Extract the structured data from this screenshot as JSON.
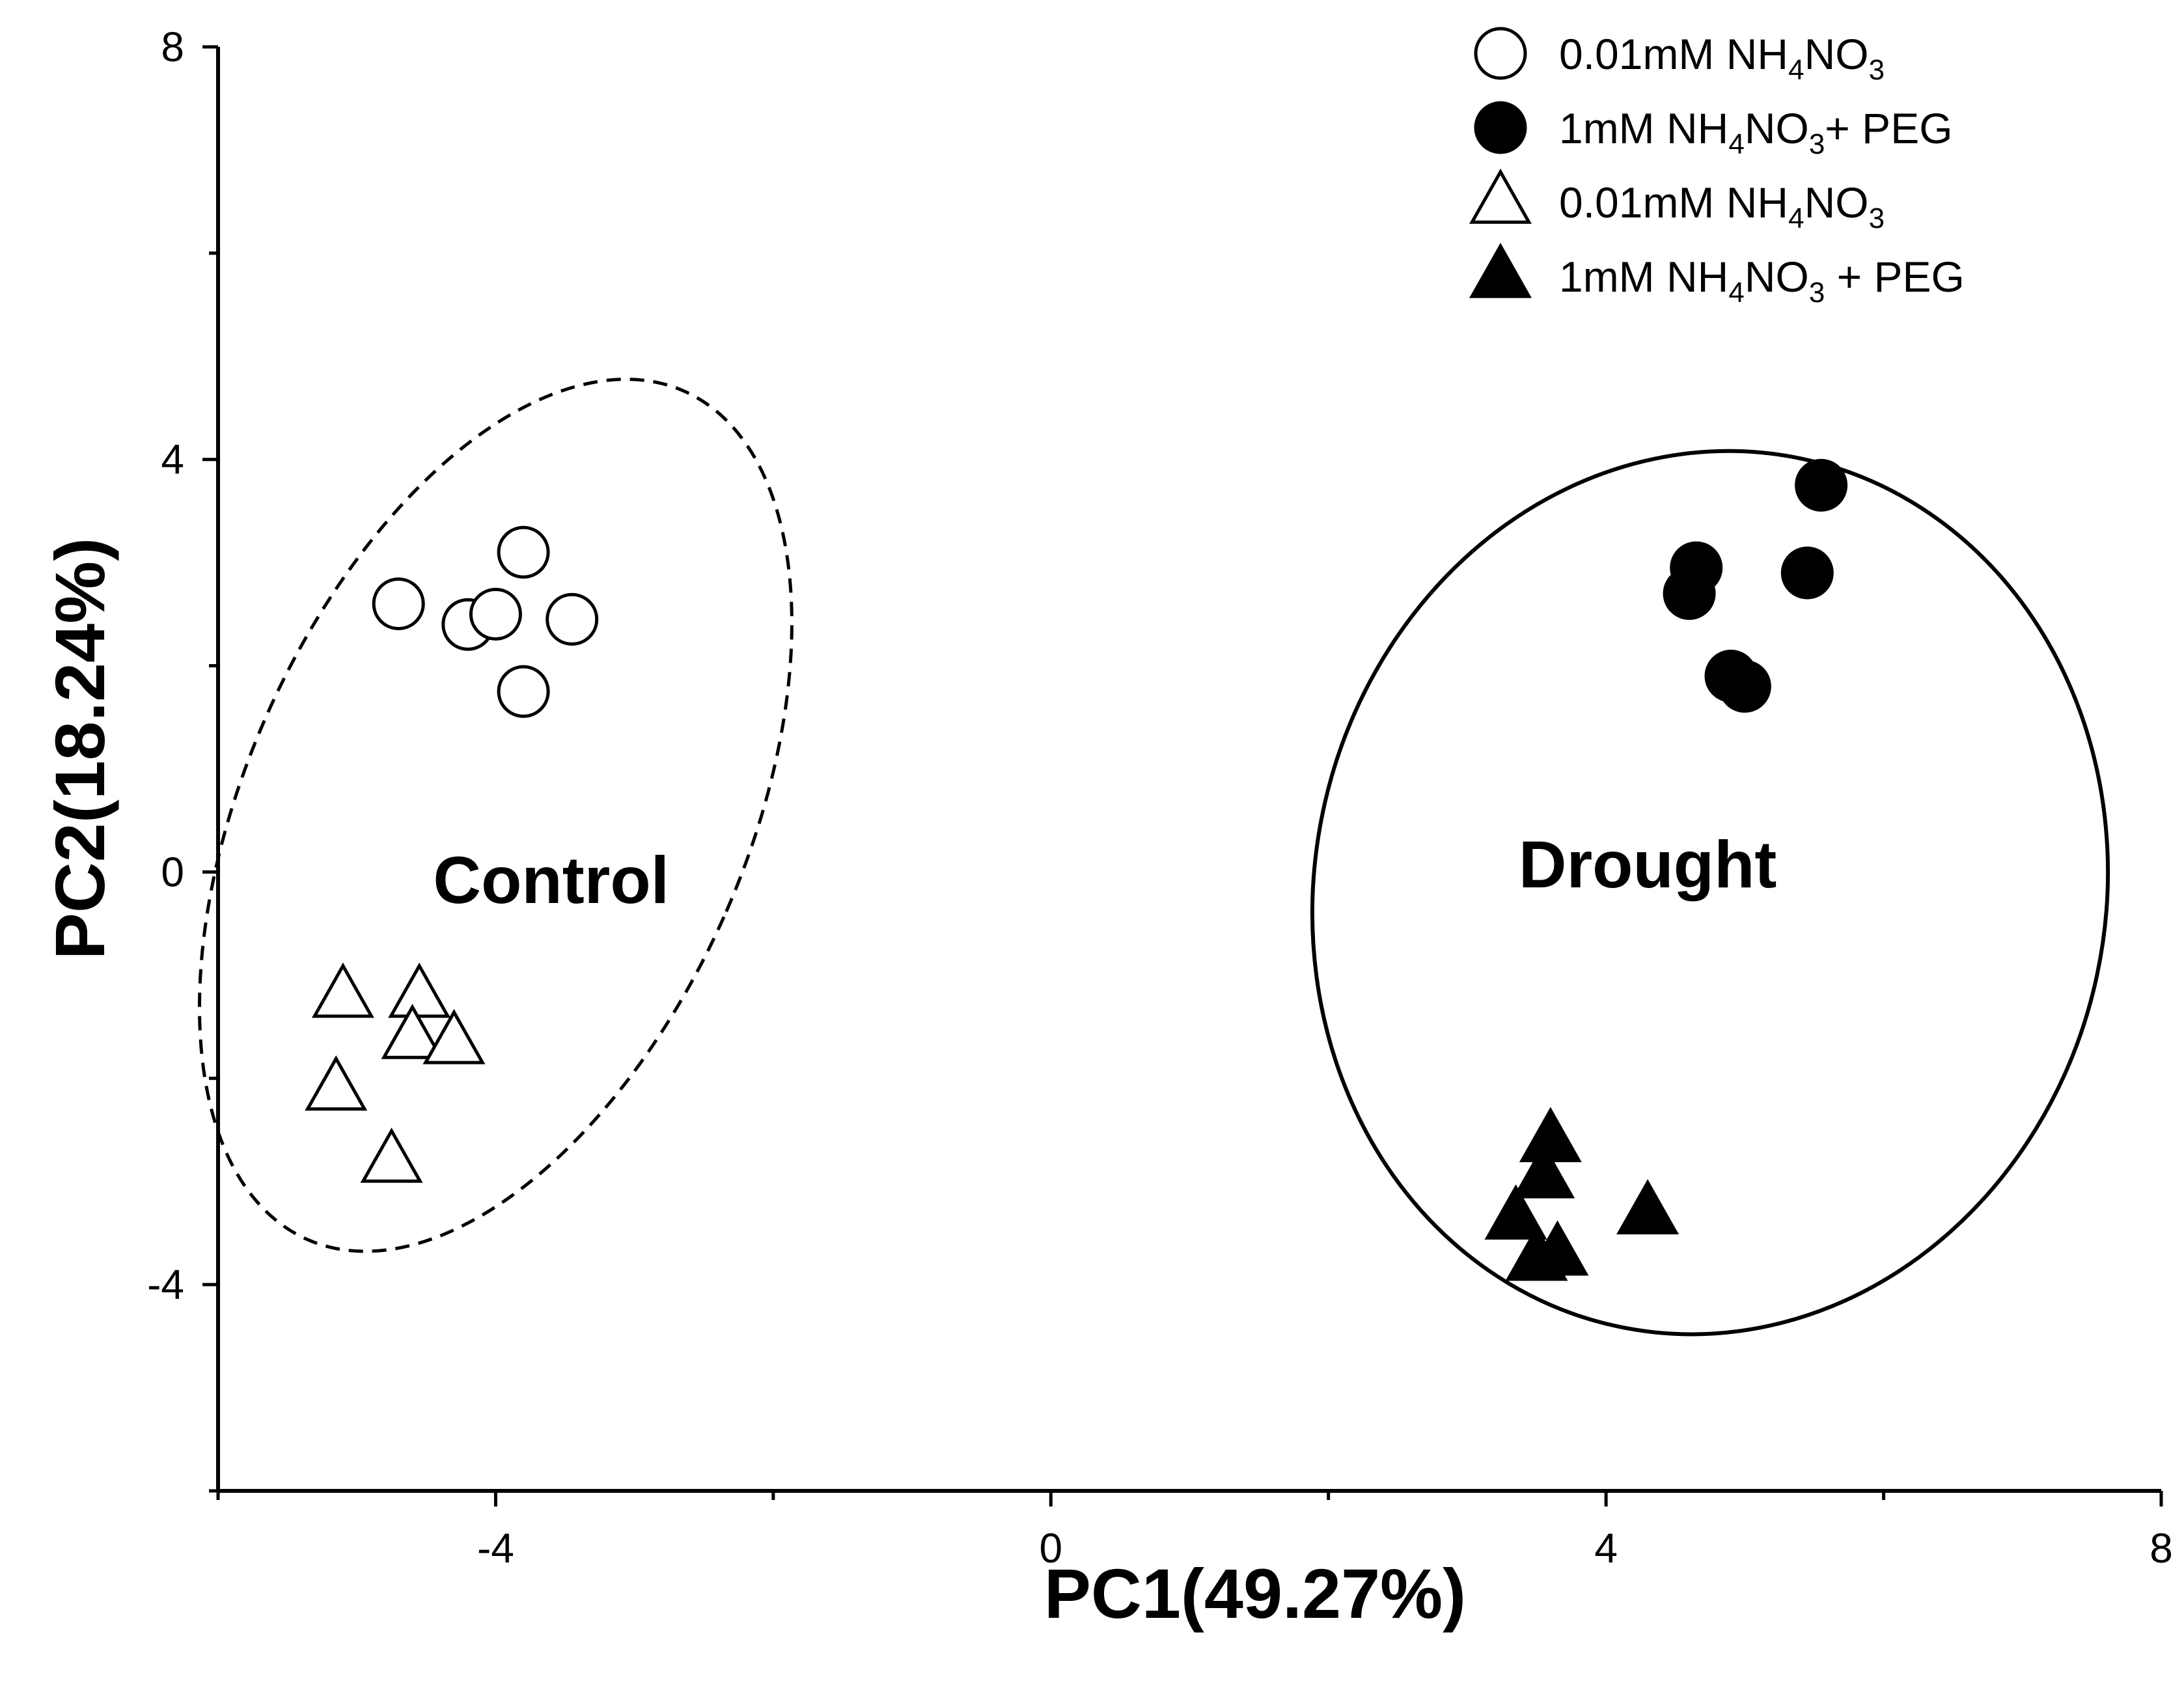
{
  "chart_data": {
    "type": "scatter",
    "xlabel": "PC1(49.27%)",
    "ylabel": "PC2(18.24%)",
    "xlim": [
      -6,
      8
    ],
    "ylim": [
      -6,
      8
    ],
    "xticks": [
      -4,
      0,
      4,
      8
    ],
    "yticks": [
      -4,
      0,
      4,
      8
    ],
    "x_tick_labels": [
      "-4",
      "0",
      "4",
      "8"
    ],
    "y_tick_labels": [
      "-4",
      "0",
      "4",
      "8"
    ],
    "grid": false,
    "legend_position": "top-right",
    "series": [
      {
        "name": "0.01mM NH4NO3",
        "label_parts": [
          "0.01mM NH",
          "4",
          "NO",
          "3",
          ""
        ],
        "marker": "circle",
        "filled": false,
        "points": [
          [
            -4.7,
            2.6
          ],
          [
            -4.2,
            2.4
          ],
          [
            -4.0,
            2.5
          ],
          [
            -3.8,
            3.1
          ],
          [
            -3.45,
            2.45
          ],
          [
            -3.8,
            1.75
          ]
        ]
      },
      {
        "name": "1mM NH4NO3+ PEG",
        "label_parts": [
          "1mM NH",
          "4",
          "NO",
          "3",
          "+ PEG"
        ],
        "marker": "circle",
        "filled": true,
        "points": [
          [
            4.6,
            2.7
          ],
          [
            4.65,
            2.95
          ],
          [
            5.45,
            2.9
          ],
          [
            5.55,
            3.75
          ],
          [
            4.9,
            1.9
          ],
          [
            5.0,
            1.8
          ]
        ]
      },
      {
        "name": "0.01mM NH4NO3",
        "label_parts": [
          "0.01mM NH",
          "4",
          "NO",
          "3",
          ""
        ],
        "marker": "triangle",
        "filled": false,
        "points": [
          [
            -5.1,
            -1.2
          ],
          [
            -4.55,
            -1.2
          ],
          [
            -4.6,
            -1.6
          ],
          [
            -4.3,
            -1.65
          ],
          [
            -5.15,
            -2.1
          ],
          [
            -4.75,
            -2.8
          ]
        ]
      },
      {
        "name": "1mM NH4NO3 + PEG",
        "label_parts": [
          "1mM NH",
          "4",
          "NO",
          "3",
          " + PEG"
        ],
        "marker": "triangle",
        "filled": true,
        "points": [
          [
            3.6,
            -2.6
          ],
          [
            3.55,
            -2.95
          ],
          [
            3.35,
            -3.35
          ],
          [
            4.3,
            -3.3
          ],
          [
            3.5,
            -3.75
          ],
          [
            3.65,
            -3.7
          ]
        ]
      }
    ],
    "annotations": [
      {
        "text": "Control",
        "x": -3.6,
        "y": -0.3
      },
      {
        "text": "Drought",
        "x": 4.3,
        "y": -0.15
      }
    ],
    "ellipses": [
      {
        "group": "Control",
        "center": [
          -4.0,
          0.55
        ],
        "semi_axes": [
          1.8,
          4.5
        ],
        "rotation_deg": 24,
        "line_style": "dashed"
      },
      {
        "group": "Drought",
        "center": [
          4.75,
          -0.2
        ],
        "semi_axes": [
          2.85,
          4.3
        ],
        "rotation_deg": 12,
        "line_style": "solid"
      }
    ]
  }
}
